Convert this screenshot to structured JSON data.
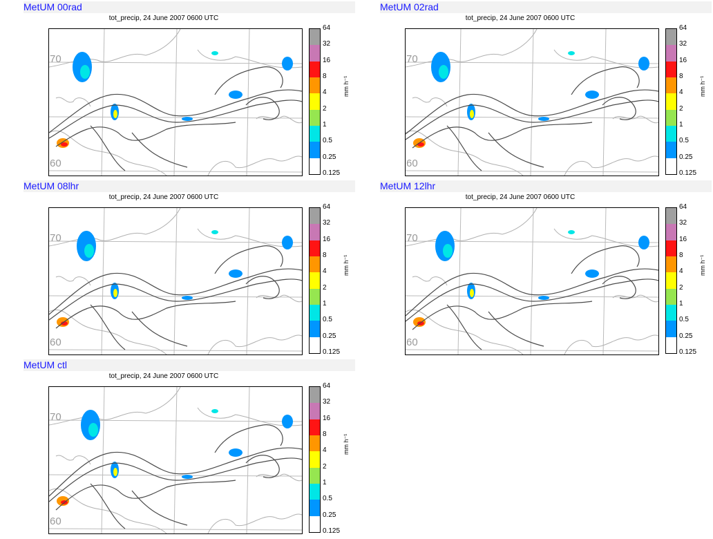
{
  "caption": "tot_precip, 24 June 2007 0600 UTC",
  "unit_label": "mm h⁻¹",
  "lat_labels": [
    "70",
    "60"
  ],
  "colorbar": {
    "levels": [
      "64",
      "32",
      "16",
      "8",
      "4",
      "2",
      "1",
      "0.5",
      "0.25",
      "0.125"
    ],
    "colors": [
      "#a0a0a0",
      "#c878b4",
      "#ff1414",
      "#ff9600",
      "#ffff00",
      "#96e650",
      "#00e6e6",
      "#0096ff",
      "#ffffff"
    ]
  },
  "panels": [
    {
      "title": "MetUM 00rad"
    },
    {
      "title": "MetUM 02rad"
    },
    {
      "title": "MetUM 08lhr"
    },
    {
      "title": "MetUM 12lhr"
    },
    {
      "title": "MetUM ctl"
    }
  ]
}
